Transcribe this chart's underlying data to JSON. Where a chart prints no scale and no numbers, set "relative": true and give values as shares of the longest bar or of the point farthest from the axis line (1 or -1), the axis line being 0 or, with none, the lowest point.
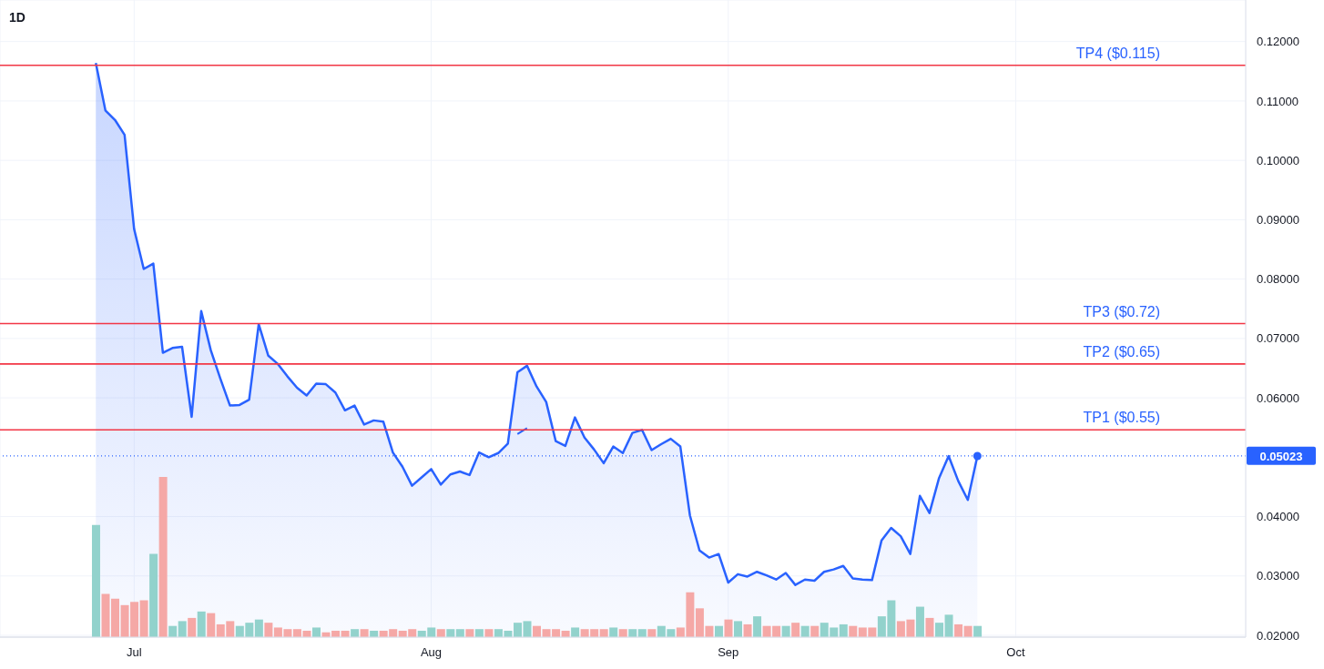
{
  "chart_data": [
    {
      "type": "area",
      "title": "1D",
      "x": [
        "--06-27",
        "--06-28",
        "--06-29",
        "--06-30",
        "--07-01",
        "--07-02",
        "--07-03",
        "--07-04",
        "--07-05",
        "--07-06",
        "--07-07",
        "--07-08",
        "--07-09",
        "--07-10",
        "--07-11",
        "--07-12",
        "--07-13",
        "--07-14",
        "--07-15",
        "--07-16",
        "--07-17",
        "--07-18",
        "--07-19",
        "--07-20",
        "--07-21",
        "--07-22",
        "--07-23",
        "--07-24",
        "--07-25",
        "--07-26",
        "--07-27",
        "--07-28",
        "--07-29",
        "--07-30",
        "--07-31",
        "--08-01",
        "--08-02",
        "--08-03",
        "--08-04",
        "--08-05",
        "--08-06",
        "--08-07",
        "--08-08",
        "--08-09",
        "--08-10",
        "--08-11",
        "--08-12",
        "--08-13",
        "--08-14",
        "--08-15",
        "--08-16",
        "--08-17",
        "--08-18",
        "--08-19",
        "--08-20",
        "--08-21",
        "--08-22",
        "--08-23",
        "--08-24",
        "--08-25",
        "--08-26",
        "--08-27",
        "--08-28",
        "--08-29",
        "--08-30",
        "--08-31",
        "--09-01",
        "--09-02",
        "--09-03",
        "--09-04",
        "--09-05",
        "--09-06",
        "--09-07",
        "--09-08",
        "--09-09",
        "--09-10",
        "--09-11",
        "--09-12",
        "--09-13",
        "--09-14",
        "--09-15",
        "--09-16",
        "--09-17",
        "--09-18",
        "--09-19",
        "--09-20",
        "--09-21",
        "--09-22",
        "--09-23",
        "--09-24",
        "--09-25",
        "--09-26",
        "--09-27"
      ],
      "series": [
        {
          "type": "area",
          "color": "#2962ff",
          "values": [
            0.1164,
            0.1084,
            0.1068,
            0.1043,
            0.0884,
            0.0817,
            0.0826,
            0.0676,
            0.0684,
            0.0686,
            0.0568,
            0.0746,
            0.068,
            0.0632,
            0.0587,
            0.0588,
            0.0597,
            0.0724,
            0.0671,
            0.0657,
            0.0636,
            0.0617,
            0.0604,
            0.0624,
            0.0623,
            0.0609,
            0.0579,
            0.0587,
            0.0555,
            0.0562,
            0.056,
            0.0508,
            0.0484,
            0.0452,
            0.0466,
            0.048,
            0.0454,
            0.0471,
            0.0476,
            0.047,
            0.0508,
            0.05,
            0.0507,
            0.0523,
            0.0643,
            0.0654,
            0.0619,
            0.0593,
            0.0527,
            0.0519,
            0.0567,
            0.0533,
            0.0513,
            0.049,
            0.0518,
            0.0507,
            0.0541,
            0.0546,
            0.0512,
            0.0522,
            0.0531,
            0.0518,
            0.0402,
            0.0343,
            0.0331,
            0.0337,
            0.0289,
            0.0303,
            0.0299,
            0.0307,
            0.0301,
            0.0294,
            0.0305,
            0.0285,
            0.0294,
            0.0292,
            0.0307,
            0.0311,
            0.0317,
            0.0296,
            0.0294,
            0.0293,
            0.036,
            0.0381,
            0.0367,
            0.0337,
            0.0435,
            0.0406,
            0.0465,
            0.0502,
            0.046,
            0.0428,
            0.0502
          ]
        },
        {
          "type": "line",
          "color": "#2962ff",
          "x": [
            "--08-10",
            "--08-11"
          ],
          "values": [
            0.0539,
            0.0549
          ]
        },
        {
          "type": "scatter",
          "color": "#2962ff",
          "marker": "circle",
          "x": [
            "--09-27"
          ],
          "values": [
            0.0502
          ]
        }
      ],
      "xlim": [
        "--06-17",
        "--10-25"
      ],
      "xticks": [
        {
          "value": "--07-01",
          "label": "Jul"
        },
        {
          "value": "--08-01",
          "label": "Aug"
        },
        {
          "value": "--09-01",
          "label": "Sep"
        },
        {
          "value": "--10-01",
          "label": "Oct"
        }
      ],
      "ylim": [
        0.0197,
        0.127
      ],
      "yticks": [
        {
          "value": 0.02,
          "label": "0.02000"
        },
        {
          "value": 0.03,
          "label": "0.03000"
        },
        {
          "value": 0.04,
          "label": "0.04000"
        },
        {
          "value": 0.06,
          "label": "0.06000"
        },
        {
          "value": 0.07,
          "label": "0.07000"
        },
        {
          "value": 0.08,
          "label": "0.08000"
        },
        {
          "value": 0.09,
          "label": "0.09000"
        },
        {
          "value": 0.1,
          "label": "0.10000"
        },
        {
          "value": 0.11,
          "label": "0.11000"
        },
        {
          "value": 0.12,
          "label": "0.12000"
        }
      ],
      "grid": true,
      "ref_lines": [
        {
          "axis": "y",
          "value": 0.116,
          "label": "TP4 ($0.115)",
          "color": "#f23645",
          "line_style": "solid"
        },
        {
          "axis": "y",
          "value": 0.0725,
          "label": "TP3 ($0.72)",
          "color": "#f23645",
          "line_style": "solid"
        },
        {
          "axis": "y",
          "value": 0.0657,
          "label": "TP2 ($0.65)",
          "color": "#f23645",
          "line_style": "solid"
        },
        {
          "axis": "y",
          "value": 0.0546,
          "label": "TP1 ($0.55)",
          "color": "#f23645",
          "line_style": "solid"
        },
        {
          "axis": "y",
          "value": 0.05023,
          "label": "0.05023",
          "color": "#2962ff",
          "line_style": "dotted"
        }
      ]
    },
    {
      "type": "bar",
      "relative": true,
      "tick_labels": false,
      "x": [
        "--06-27",
        "--06-28",
        "--06-29",
        "--06-30",
        "--07-01",
        "--07-02",
        "--07-03",
        "--07-04",
        "--07-05",
        "--07-06",
        "--07-07",
        "--07-08",
        "--07-09",
        "--07-10",
        "--07-11",
        "--07-12",
        "--07-13",
        "--07-14",
        "--07-15",
        "--07-16",
        "--07-17",
        "--07-18",
        "--07-19",
        "--07-20",
        "--07-21",
        "--07-22",
        "--07-23",
        "--07-24",
        "--07-25",
        "--07-26",
        "--07-27",
        "--07-28",
        "--07-29",
        "--07-30",
        "--07-31",
        "--08-01",
        "--08-02",
        "--08-03",
        "--08-04",
        "--08-05",
        "--08-06",
        "--08-07",
        "--08-08",
        "--08-09",
        "--08-10",
        "--08-11",
        "--08-12",
        "--08-13",
        "--08-14",
        "--08-15",
        "--08-16",
        "--08-17",
        "--08-18",
        "--08-19",
        "--08-20",
        "--08-21",
        "--08-22",
        "--08-23",
        "--08-24",
        "--08-25",
        "--08-26",
        "--08-27",
        "--08-28",
        "--08-29",
        "--08-30",
        "--08-31",
        "--09-01",
        "--09-02",
        "--09-03",
        "--09-04",
        "--09-05",
        "--09-06",
        "--09-07",
        "--09-08",
        "--09-09",
        "--09-10",
        "--09-11",
        "--09-12",
        "--09-13",
        "--09-14",
        "--09-15",
        "--09-16",
        "--09-17",
        "--09-18",
        "--09-19",
        "--09-20",
        "--09-21",
        "--09-22",
        "--09-23",
        "--09-24",
        "--09-25",
        "--09-26",
        "--09-27"
      ],
      "values": [
        0.7,
        0.27,
        0.24,
        0.2,
        0.22,
        0.23,
        0.52,
        1,
        0.07,
        0.1,
        0.12,
        0.16,
        0.15,
        0.08,
        0.1,
        0.07,
        0.09,
        0.11,
        0.09,
        0.06,
        0.05,
        0.05,
        0.04,
        0.06,
        0.03,
        0.04,
        0.04,
        0.05,
        0.05,
        0.04,
        0.04,
        0.05,
        0.04,
        0.05,
        0.04,
        0.06,
        0.05,
        0.05,
        0.05,
        0.05,
        0.05,
        0.05,
        0.05,
        0.04,
        0.09,
        0.1,
        0.07,
        0.05,
        0.05,
        0.04,
        0.06,
        0.05,
        0.05,
        0.05,
        0.06,
        0.05,
        0.05,
        0.05,
        0.05,
        0.07,
        0.05,
        0.06,
        0.28,
        0.18,
        0.07,
        0.07,
        0.11,
        0.1,
        0.08,
        0.13,
        0.07,
        0.07,
        0.07,
        0.09,
        0.07,
        0.07,
        0.09,
        0.06,
        0.08,
        0.07,
        0.06,
        0.06,
        0.13,
        0.23,
        0.1,
        0.11,
        0.19,
        0.12,
        0.09,
        0.14,
        0.08,
        0.07,
        0.07
      ],
      "colors": [
        "#92d2cc",
        "#f5a8a6",
        "#f5a8a6",
        "#f5a8a6",
        "#f5a8a6",
        "#f5a8a6",
        "#92d2cc",
        "#f5a8a6",
        "#92d2cc",
        "#92d2cc",
        "#f5a8a6",
        "#92d2cc",
        "#f5a8a6",
        "#f5a8a6",
        "#f5a8a6",
        "#92d2cc",
        "#92d2cc",
        "#92d2cc",
        "#f5a8a6",
        "#f5a8a6",
        "#f5a8a6",
        "#f5a8a6",
        "#f5a8a6",
        "#92d2cc",
        "#f5a8a6",
        "#f5a8a6",
        "#f5a8a6",
        "#92d2cc",
        "#f5a8a6",
        "#92d2cc",
        "#f5a8a6",
        "#f5a8a6",
        "#f5a8a6",
        "#f5a8a6",
        "#92d2cc",
        "#92d2cc",
        "#f5a8a6",
        "#92d2cc",
        "#92d2cc",
        "#f5a8a6",
        "#92d2cc",
        "#f5a8a6",
        "#92d2cc",
        "#92d2cc",
        "#92d2cc",
        "#92d2cc",
        "#f5a8a6",
        "#f5a8a6",
        "#f5a8a6",
        "#f5a8a6",
        "#92d2cc",
        "#f5a8a6",
        "#f5a8a6",
        "#f5a8a6",
        "#92d2cc",
        "#f5a8a6",
        "#92d2cc",
        "#92d2cc",
        "#f5a8a6",
        "#92d2cc",
        "#92d2cc",
        "#f5a8a6",
        "#f5a8a6",
        "#f5a8a6",
        "#f5a8a6",
        "#92d2cc",
        "#f5a8a6",
        "#92d2cc",
        "#f5a8a6",
        "#92d2cc",
        "#f5a8a6",
        "#f5a8a6",
        "#92d2cc",
        "#f5a8a6",
        "#92d2cc",
        "#f5a8a6",
        "#92d2cc",
        "#92d2cc",
        "#92d2cc",
        "#f5a8a6",
        "#f5a8a6",
        "#f5a8a6",
        "#92d2cc",
        "#92d2cc",
        "#f5a8a6",
        "#f5a8a6",
        "#92d2cc",
        "#f5a8a6",
        "#92d2cc",
        "#92d2cc",
        "#f5a8a6",
        "#f5a8a6",
        "#92d2cc"
      ],
      "xlim": [
        "--06-17",
        "--10-25"
      ]
    }
  ]
}
